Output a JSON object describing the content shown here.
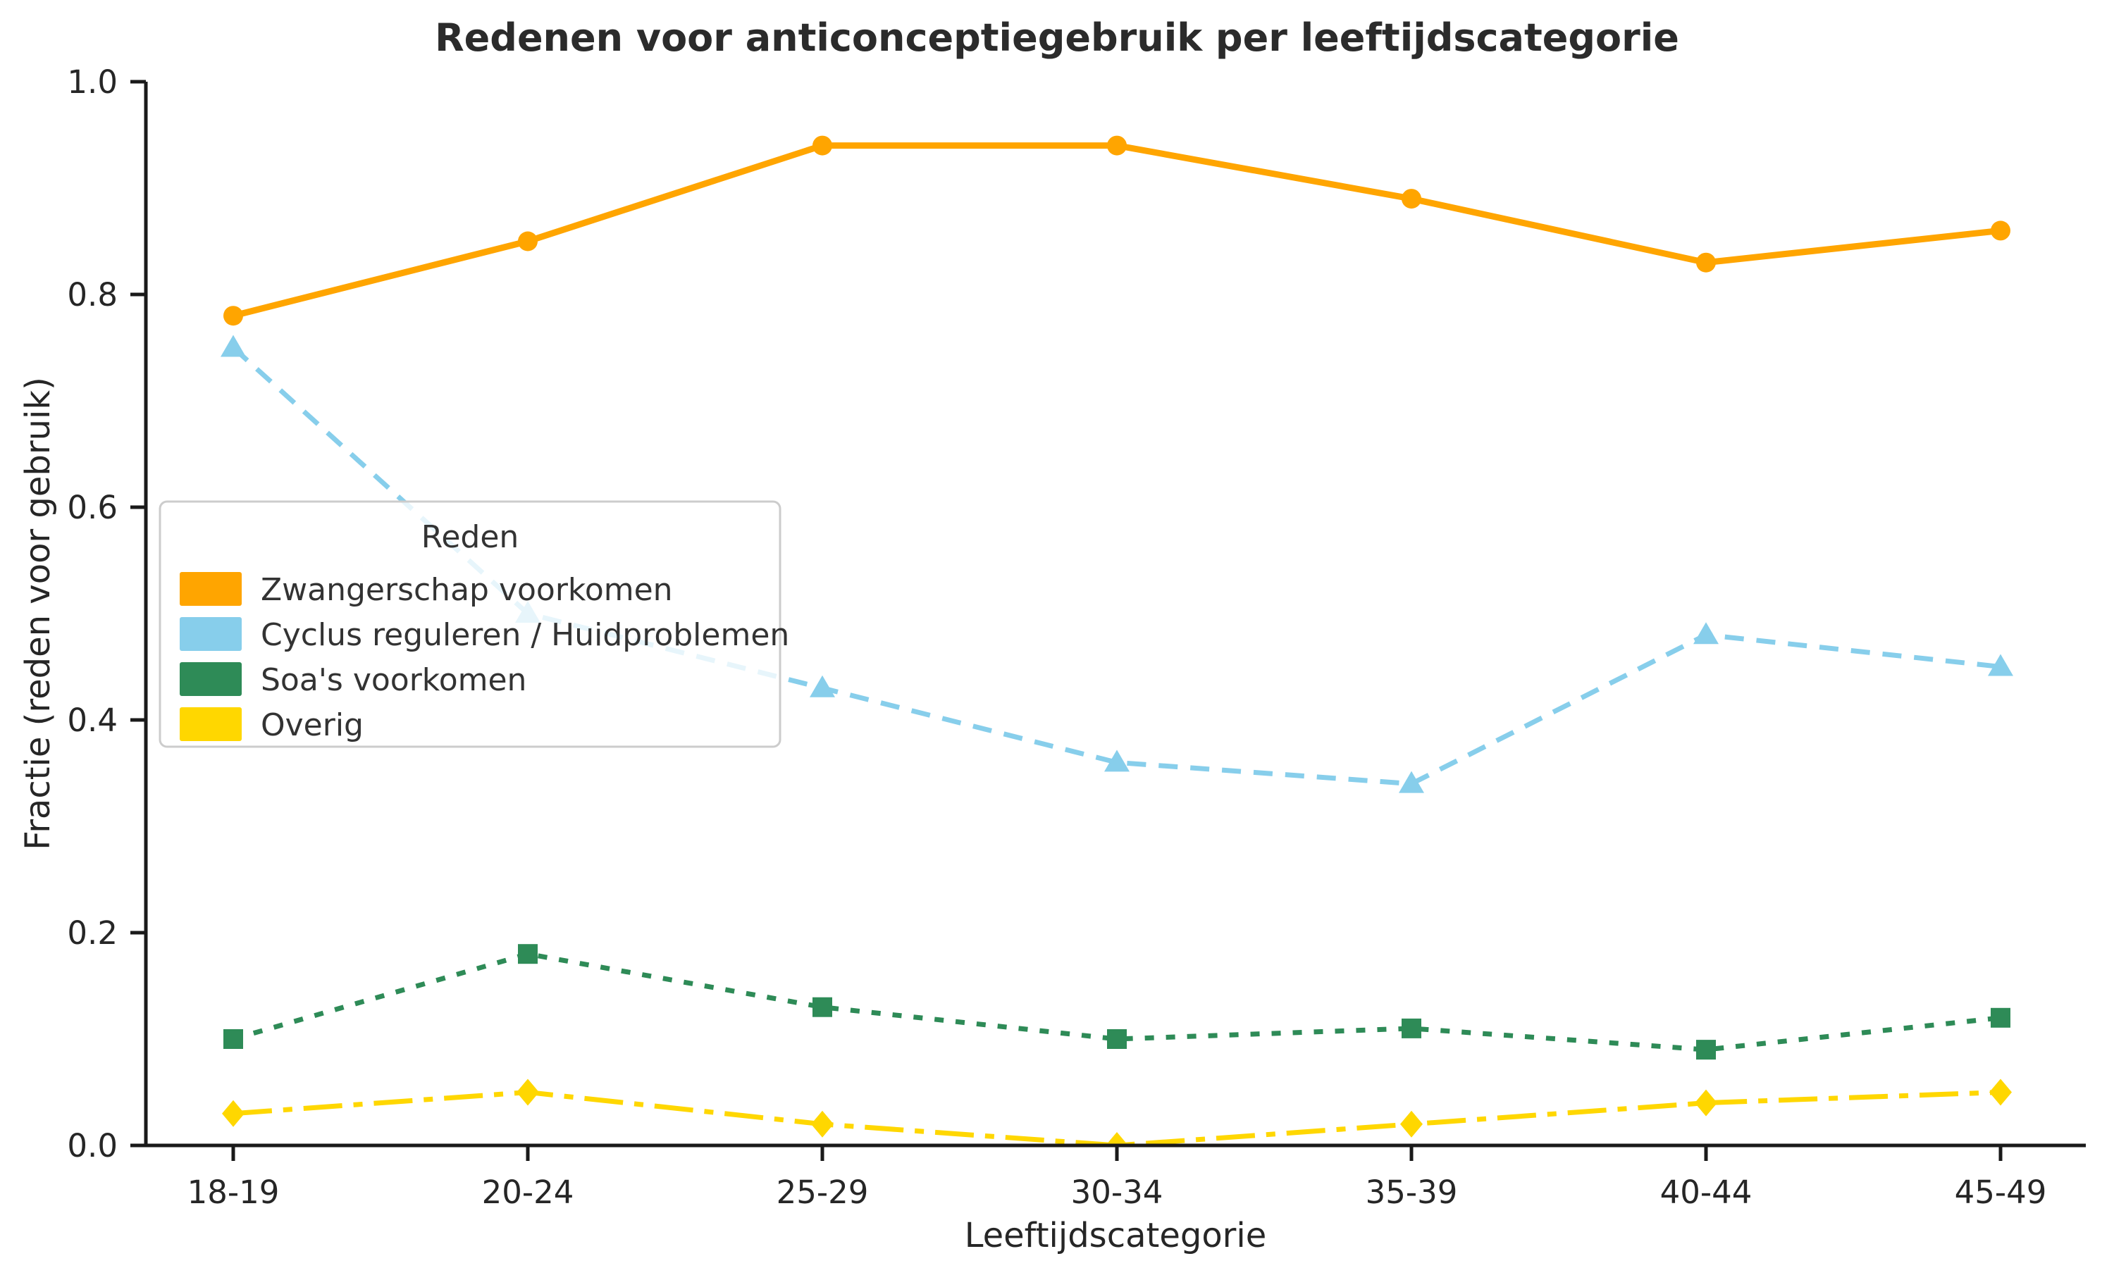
{
  "chart_data": {
    "type": "line",
    "title": "Redenen voor anticonceptiegebruik per leeftijdscategorie",
    "xlabel": "Leeftijdscategorie",
    "ylabel": "Fractie (reden voor gebruik)",
    "categories": [
      "18-19",
      "20-24",
      "25-29",
      "30-34",
      "35-39",
      "40-44",
      "45-49"
    ],
    "ylim": [
      0.0,
      1.0
    ],
    "yticks": [
      0.0,
      0.2,
      0.4,
      0.6,
      0.8,
      1.0
    ],
    "ytick_labels": [
      "0.0",
      "0.2",
      "0.4",
      "0.6",
      "0.8",
      "1.0"
    ],
    "grid": false,
    "legend": {
      "title": "Reden",
      "position": "center-left"
    },
    "series": [
      {
        "name": "Zwangerschap voorkomen",
        "color": "#FFA500",
        "linestyle": "solid",
        "marker": "circle",
        "values": [
          0.78,
          0.85,
          0.94,
          0.94,
          0.89,
          0.83,
          0.86
        ]
      },
      {
        "name": "Cyclus reguleren / Huidproblemen",
        "color": "#87CEEB",
        "linestyle": "dashed",
        "marker": "triangle",
        "values": [
          0.75,
          0.5,
          0.43,
          0.36,
          0.34,
          0.48,
          0.45
        ]
      },
      {
        "name": "Soa's voorkomen",
        "color": "#2E8B57",
        "linestyle": "dotted",
        "marker": "square",
        "values": [
          0.1,
          0.18,
          0.13,
          0.1,
          0.11,
          0.09,
          0.12
        ]
      },
      {
        "name": "Overig",
        "color": "#FFD700",
        "linestyle": "dashdot",
        "marker": "diamond",
        "values": [
          0.03,
          0.05,
          0.02,
          0.0,
          0.02,
          0.04,
          0.05
        ]
      }
    ],
    "axis_color": "#1a1a1a"
  }
}
